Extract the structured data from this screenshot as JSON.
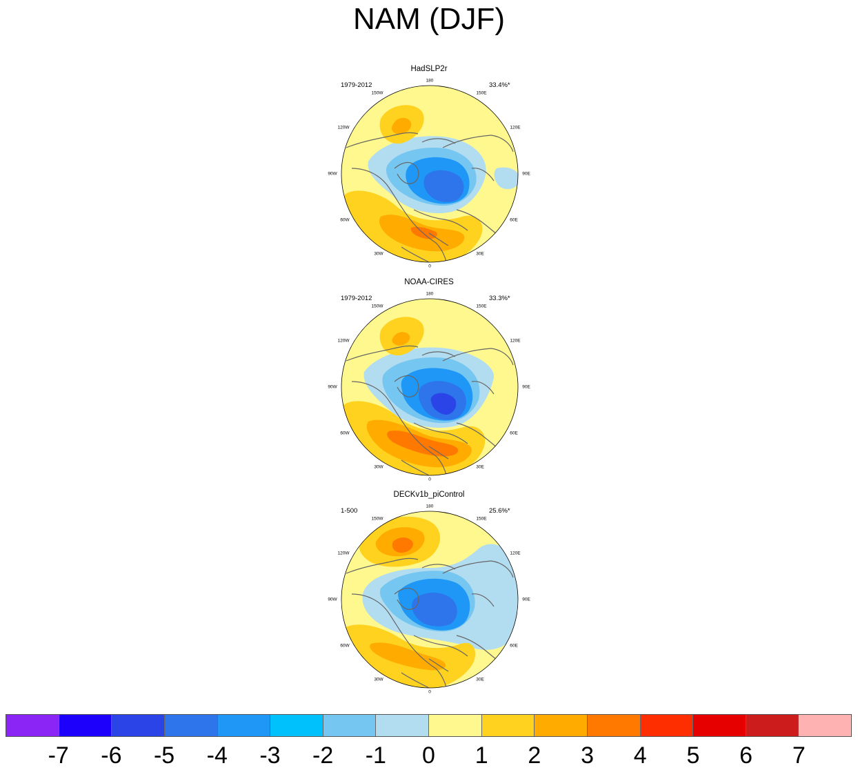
{
  "title": "NAM (DJF)",
  "panels": [
    {
      "title": "HadSLP2r",
      "period": "1979-2012",
      "variance": "33.4%*"
    },
    {
      "title": "NOAA-CIRES",
      "period": "1979-2012",
      "variance": "33.3%*"
    },
    {
      "title": "DECKv1b_piControl",
      "period": "1-500",
      "variance": "25.6%*"
    }
  ],
  "longitude_labels": [
    "180",
    "150E",
    "120E",
    "90E",
    "60E",
    "30E",
    "0",
    "30W",
    "60W",
    "90W",
    "120W",
    "150W"
  ],
  "colorbar": {
    "colors": [
      "#8a25f5",
      "#1d00fb",
      "#2a44e8",
      "#2e74ea",
      "#1e97f7",
      "#00c1fb",
      "#75c6f0",
      "#b2dcf0",
      "#fff88e",
      "#ffd220",
      "#ffab00",
      "#ff7800",
      "#ff2e00",
      "#e60000",
      "#cc1c1c",
      "#ffb2b2"
    ],
    "labels": [
      "-7",
      "-6",
      "-5",
      "-4",
      "-3",
      "-2",
      "-1",
      "0",
      "1",
      "2",
      "3",
      "4",
      "5",
      "6",
      "7"
    ]
  },
  "palette": {
    "ocean_bg": "#fff88e",
    "coast": "#666666",
    "neg1": "#b2dcf0",
    "neg2": "#75c6f0",
    "neg3": "#1e97f7",
    "neg4": "#2e74ea",
    "neg5": "#2a44e8",
    "pos1": "#ffd220",
    "pos2": "#ffab00",
    "pos3": "#ff7800"
  }
}
